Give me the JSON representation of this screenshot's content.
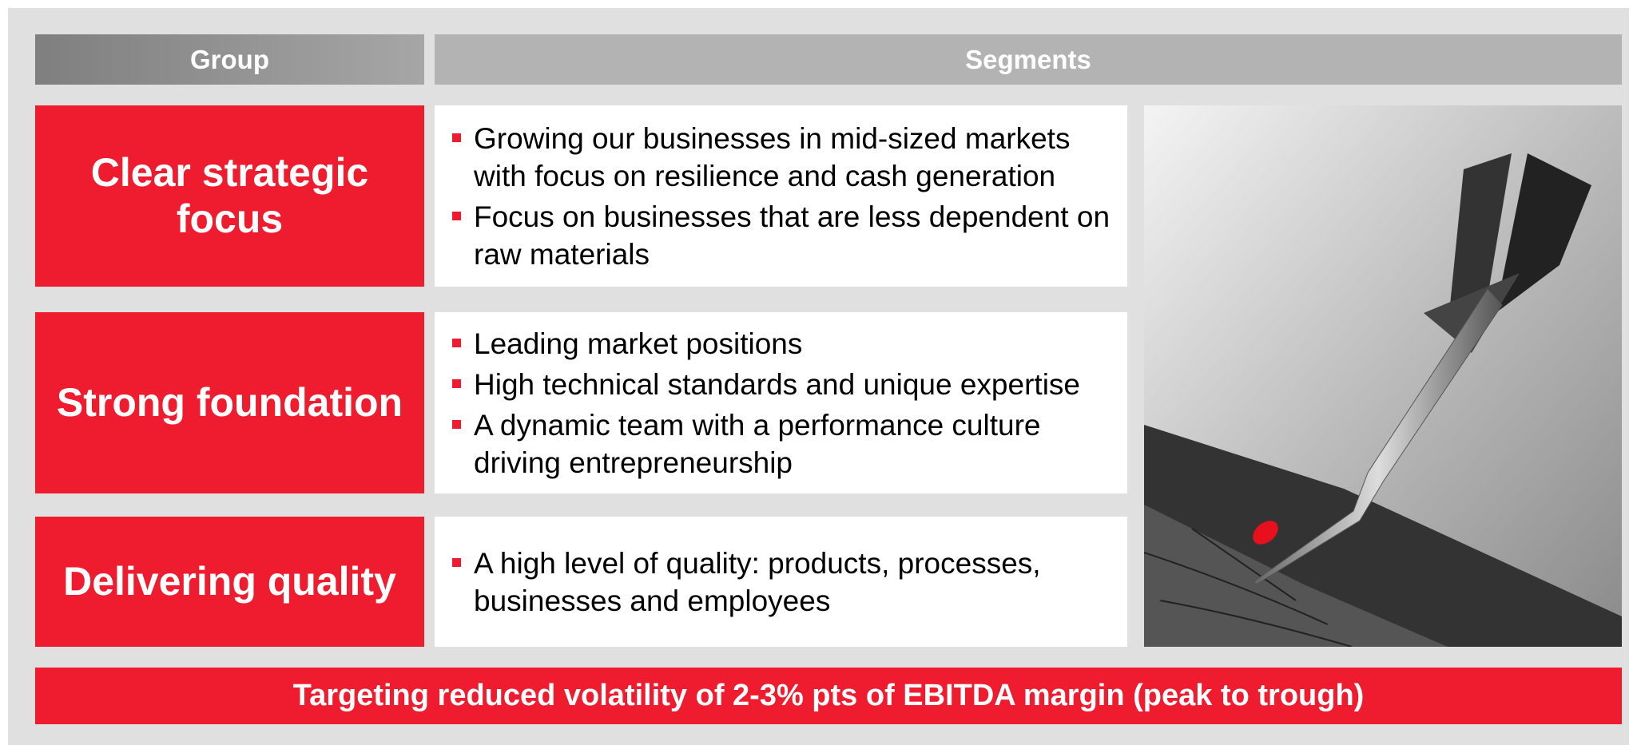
{
  "header": {
    "group": "Group",
    "segments": "Segments"
  },
  "rows": [
    {
      "title": "Clear strategic focus",
      "bullets": [
        "Growing our businesses in mid-sized markets with focus on resilience and cash generation",
        "Focus on businesses that are less dependent on raw materials"
      ]
    },
    {
      "title": "Strong foundation",
      "bullets": [
        "Leading market positions",
        "High technical standards and unique expertise",
        "A dynamic team with a performance culture driving entrepreneurship"
      ]
    },
    {
      "title": "Delivering quality",
      "bullets": [
        "A high level of quality: products, processes, businesses and employees"
      ]
    }
  ],
  "footer": "Targeting reduced volatility of 2-3% pts of EBITDA margin (peak to trough)"
}
